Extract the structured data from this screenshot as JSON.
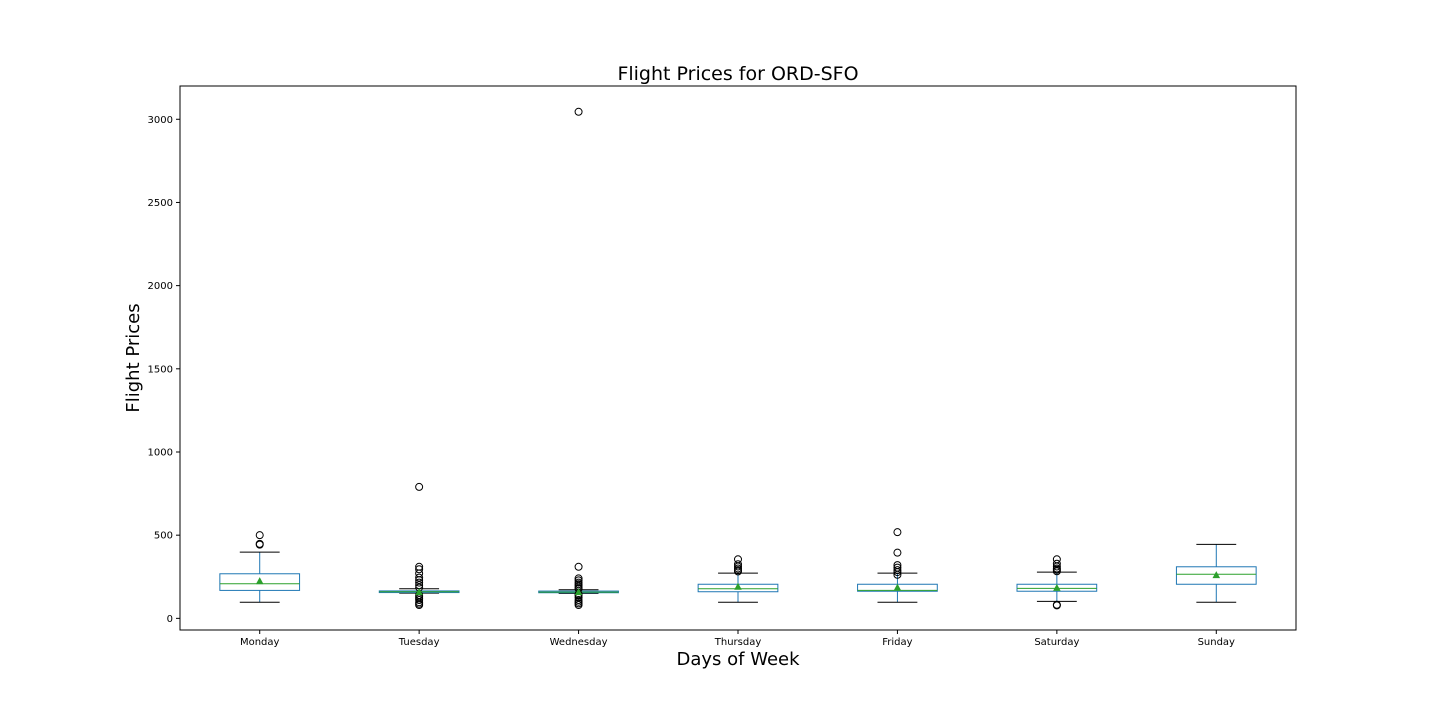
{
  "chart_data": {
    "type": "box",
    "title": "Flight Prices for ORD-SFO",
    "xlabel": "Days of Week",
    "ylabel": "Flight Prices",
    "ylim": [
      -70,
      3200
    ],
    "yticks": [
      0,
      500,
      1000,
      1500,
      2000,
      2500,
      3000
    ],
    "grid": false,
    "show_means": true,
    "colors": {
      "box": "#1f77b4",
      "median": "#2ca02c",
      "mean_marker": "#2ca02c",
      "whisker_cap": "#000000",
      "outlier": "#000000"
    },
    "categories": [
      "Monday",
      "Tuesday",
      "Wednesday",
      "Thursday",
      "Friday",
      "Saturday",
      "Sunday"
    ],
    "boxes": [
      {
        "whislo": 97,
        "q1": 168,
        "med": 208,
        "q3": 268,
        "whishi": 398,
        "mean": 224,
        "fliers": [
          443,
          448,
          500
        ]
      },
      {
        "whislo": 152,
        "q1": 155,
        "med": 160,
        "q3": 165,
        "whishi": 178,
        "mean": 158,
        "fliers": [
          80,
          88,
          97,
          110,
          120,
          130,
          140,
          185,
          200,
          215,
          230,
          245,
          270,
          295,
          310,
          790
        ]
      },
      {
        "whislo": 150,
        "q1": 154,
        "med": 158,
        "q3": 164,
        "whishi": 172,
        "mean": 158,
        "fliers": [
          80,
          90,
          100,
          110,
          125,
          138,
          145,
          178,
          185,
          195,
          205,
          215,
          228,
          240,
          310,
          3045
        ]
      },
      {
        "whislo": 97,
        "q1": 160,
        "med": 178,
        "q3": 205,
        "whishi": 272,
        "mean": 190,
        "fliers": [
          282,
          290,
          300,
          312,
          325,
          355
        ]
      },
      {
        "whislo": 97,
        "q1": 163,
        "med": 168,
        "q3": 205,
        "whishi": 272,
        "mean": 185,
        "fliers": [
          262,
          278,
          290,
          305,
          320,
          395,
          518
        ]
      },
      {
        "whislo": 102,
        "q1": 163,
        "med": 180,
        "q3": 205,
        "whishi": 278,
        "mean": 183,
        "fliers": [
          78,
          82,
          283,
          292,
          300,
          312,
          328,
          355
        ]
      },
      {
        "whislo": 97,
        "q1": 205,
        "med": 265,
        "q3": 310,
        "whishi": 445,
        "mean": 260,
        "fliers": []
      }
    ]
  }
}
